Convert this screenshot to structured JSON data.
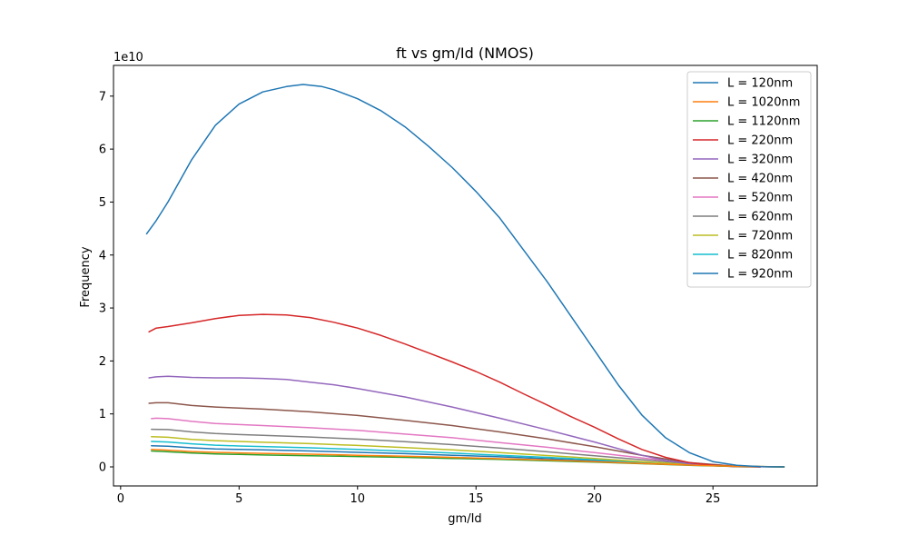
{
  "chart_data": {
    "type": "line",
    "title": "ft vs gm/Id (NMOS)",
    "xlabel": "gm/Id",
    "ylabel": "Frequency",
    "y_multiplier_label": "1e10",
    "xlim": [
      -0.3,
      29.4
    ],
    "ylim": [
      -3600000000.0,
      75800000000.0
    ],
    "x_ticks": [
      0,
      5,
      10,
      15,
      20,
      25
    ],
    "x_tick_labels": [
      "0",
      "5",
      "10",
      "15",
      "20",
      "25"
    ],
    "y_ticks": [
      0,
      10000000000.0,
      20000000000.0,
      30000000000.0,
      40000000000.0,
      50000000000.0,
      60000000000.0,
      70000000000.0
    ],
    "y_tick_labels": [
      "0",
      "1",
      "2",
      "3",
      "4",
      "5",
      "6",
      "7"
    ],
    "grid": false,
    "legend_position": "top-right",
    "series": [
      {
        "name": "L = 120nm",
        "color": "#1f77b4",
        "x": [
          1.1,
          1.5,
          2,
          3,
          4,
          5,
          6,
          7,
          7.7,
          8.5,
          9,
          10,
          11,
          12,
          13,
          14,
          15,
          16,
          17,
          18,
          19,
          20,
          21,
          22,
          23,
          24,
          25,
          26,
          27,
          28
        ],
        "y": [
          44000000000.0,
          46500000000.0,
          50000000000.0,
          58000000000.0,
          64500000000.0,
          68500000000.0,
          70800000000.0,
          71800000000.0,
          72200000000.0,
          71800000000.0,
          71200000000.0,
          69500000000.0,
          67200000000.0,
          64200000000.0,
          60500000000.0,
          56500000000.0,
          52000000000.0,
          47000000000.0,
          41000000000.0,
          35000000000.0,
          28500000000.0,
          22000000000.0,
          15500000000.0,
          9800000000.0,
          5500000000.0,
          2700000000.0,
          1000000000.0,
          300000000.0,
          50000000.0,
          0
        ]
      },
      {
        "name": "L = 1020nm",
        "color": "#ff7f0e",
        "x": [
          1.3,
          2,
          3,
          4,
          5,
          6,
          8,
          10,
          12,
          14,
          16,
          18,
          20,
          22,
          24,
          26,
          28
        ],
        "y": [
          3300000000.0,
          3150000000.0,
          2900000000.0,
          2750000000.0,
          2650000000.0,
          2550000000.0,
          2400000000.0,
          2200000000.0,
          2000000000.0,
          1800000000.0,
          1550000000.0,
          1300000000.0,
          1000000000.0,
          650000000.0,
          350000000.0,
          100000000.0,
          0
        ]
      },
      {
        "name": "L = 1120nm",
        "color": "#2ca02c",
        "x": [
          1.3,
          2,
          3,
          4,
          5,
          6,
          8,
          10,
          12,
          14,
          16,
          18,
          20,
          22,
          24,
          26,
          28
        ],
        "y": [
          3000000000.0,
          2850000000.0,
          2600000000.0,
          2450000000.0,
          2350000000.0,
          2250000000.0,
          2100000000.0,
          1950000000.0,
          1800000000.0,
          1600000000.0,
          1400000000.0,
          1150000000.0,
          900000000.0,
          600000000.0,
          300000000.0,
          80000000.0,
          0
        ]
      },
      {
        "name": "L = 220nm",
        "color": "#d62728",
        "x": [
          1.2,
          1.5,
          2,
          3,
          4,
          5,
          6,
          7,
          8,
          9,
          10,
          11,
          12,
          13,
          14,
          15,
          16,
          17,
          18,
          19,
          20,
          21,
          22,
          23,
          24,
          25,
          26,
          27
        ],
        "y": [
          25500000000.0,
          26200000000.0,
          26500000000.0,
          27200000000.0,
          28000000000.0,
          28600000000.0,
          28800000000.0,
          28700000000.0,
          28200000000.0,
          27300000000.0,
          26200000000.0,
          24800000000.0,
          23200000000.0,
          21500000000.0,
          19800000000.0,
          18000000000.0,
          16000000000.0,
          13800000000.0,
          11700000000.0,
          9500000000.0,
          7500000000.0,
          5300000000.0,
          3300000000.0,
          1800000000.0,
          800000000.0,
          300000000.0,
          50000000.0,
          0
        ]
      },
      {
        "name": "L = 320nm",
        "color": "#9467bd",
        "x": [
          1.2,
          1.5,
          2,
          3,
          4,
          5,
          6,
          7,
          8,
          9,
          10,
          12,
          14,
          16,
          18,
          20,
          22,
          23,
          24,
          25,
          26,
          27
        ],
        "y": [
          16800000000.0,
          17000000000.0,
          17100000000.0,
          16900000000.0,
          16800000000.0,
          16800000000.0,
          16700000000.0,
          16500000000.0,
          16000000000.0,
          15500000000.0,
          14800000000.0,
          13200000000.0,
          11300000000.0,
          9200000000.0,
          7000000000.0,
          4700000000.0,
          2200000000.0,
          1200000000.0,
          600000000.0,
          200000000.0,
          50000000.0,
          0
        ]
      },
      {
        "name": "L = 420nm",
        "color": "#8c564b",
        "x": [
          1.2,
          1.5,
          2,
          3,
          4,
          5,
          6,
          8,
          10,
          12,
          14,
          16,
          18,
          20,
          22,
          24,
          26,
          27
        ],
        "y": [
          12000000000.0,
          12100000000.0,
          12100000000.0,
          11600000000.0,
          11300000000.0,
          11100000000.0,
          10900000000.0,
          10400000000.0,
          9700000000.0,
          8800000000.0,
          7800000000.0,
          6600000000.0,
          5300000000.0,
          3800000000.0,
          2200000000.0,
          800000000.0,
          100000000.0,
          0
        ]
      },
      {
        "name": "L = 520nm",
        "color": "#e377c2",
        "x": [
          1.3,
          1.5,
          2,
          3,
          4,
          5,
          6,
          8,
          10,
          12,
          14,
          16,
          18,
          20,
          22,
          24,
          26,
          27.5
        ],
        "y": [
          9100000000.0,
          9200000000.0,
          9100000000.0,
          8600000000.0,
          8200000000.0,
          8000000000.0,
          7800000000.0,
          7400000000.0,
          6900000000.0,
          6200000000.0,
          5500000000.0,
          4600000000.0,
          3700000000.0,
          2700000000.0,
          1700000000.0,
          700000000.0,
          100000000.0,
          0
        ]
      },
      {
        "name": "L = 620nm",
        "color": "#7f7f7f",
        "x": [
          1.3,
          2,
          3,
          4,
          5,
          6,
          8,
          10,
          12,
          14,
          16,
          18,
          20,
          22,
          24,
          26,
          28
        ],
        "y": [
          7100000000.0,
          7050000000.0,
          6600000000.0,
          6300000000.0,
          6100000000.0,
          5950000000.0,
          5650000000.0,
          5250000000.0,
          4750000000.0,
          4200000000.0,
          3550000000.0,
          2850000000.0,
          2100000000.0,
          1350000000.0,
          650000000.0,
          150000000.0,
          0
        ]
      },
      {
        "name": "L = 720nm",
        "color": "#bcbd22",
        "x": [
          1.3,
          2,
          3,
          4,
          5,
          6,
          8,
          10,
          12,
          14,
          16,
          18,
          20,
          22,
          24,
          26,
          28
        ],
        "y": [
          5700000000.0,
          5600000000.0,
          5200000000.0,
          4950000000.0,
          4800000000.0,
          4650000000.0,
          4400000000.0,
          4050000000.0,
          3650000000.0,
          3200000000.0,
          2700000000.0,
          2150000000.0,
          1600000000.0,
          1000000000.0,
          500000000.0,
          120000000.0,
          0
        ]
      },
      {
        "name": "L = 820nm",
        "color": "#17becf",
        "x": [
          1.3,
          2,
          3,
          4,
          5,
          6,
          8,
          10,
          12,
          14,
          16,
          18,
          20,
          22,
          24,
          26,
          28
        ],
        "y": [
          4800000000.0,
          4700000000.0,
          4350000000.0,
          4100000000.0,
          3950000000.0,
          3850000000.0,
          3600000000.0,
          3300000000.0,
          2950000000.0,
          2600000000.0,
          2200000000.0,
          1800000000.0,
          1350000000.0,
          850000000.0,
          420000000.0,
          100000000.0,
          0
        ]
      },
      {
        "name": "L = 920nm",
        "color": "#1f77b4",
        "x": [
          1.3,
          2,
          3,
          4,
          5,
          6,
          8,
          10,
          12,
          14,
          16,
          18,
          20,
          22,
          24,
          26,
          28
        ],
        "y": [
          4000000000.0,
          3900000000.0,
          3600000000.0,
          3400000000.0,
          3300000000.0,
          3200000000.0,
          3000000000.0,
          2750000000.0,
          2500000000.0,
          2200000000.0,
          1900000000.0,
          1550000000.0,
          1150000000.0,
          750000000.0,
          380000000.0,
          100000000.0,
          0
        ]
      }
    ]
  }
}
